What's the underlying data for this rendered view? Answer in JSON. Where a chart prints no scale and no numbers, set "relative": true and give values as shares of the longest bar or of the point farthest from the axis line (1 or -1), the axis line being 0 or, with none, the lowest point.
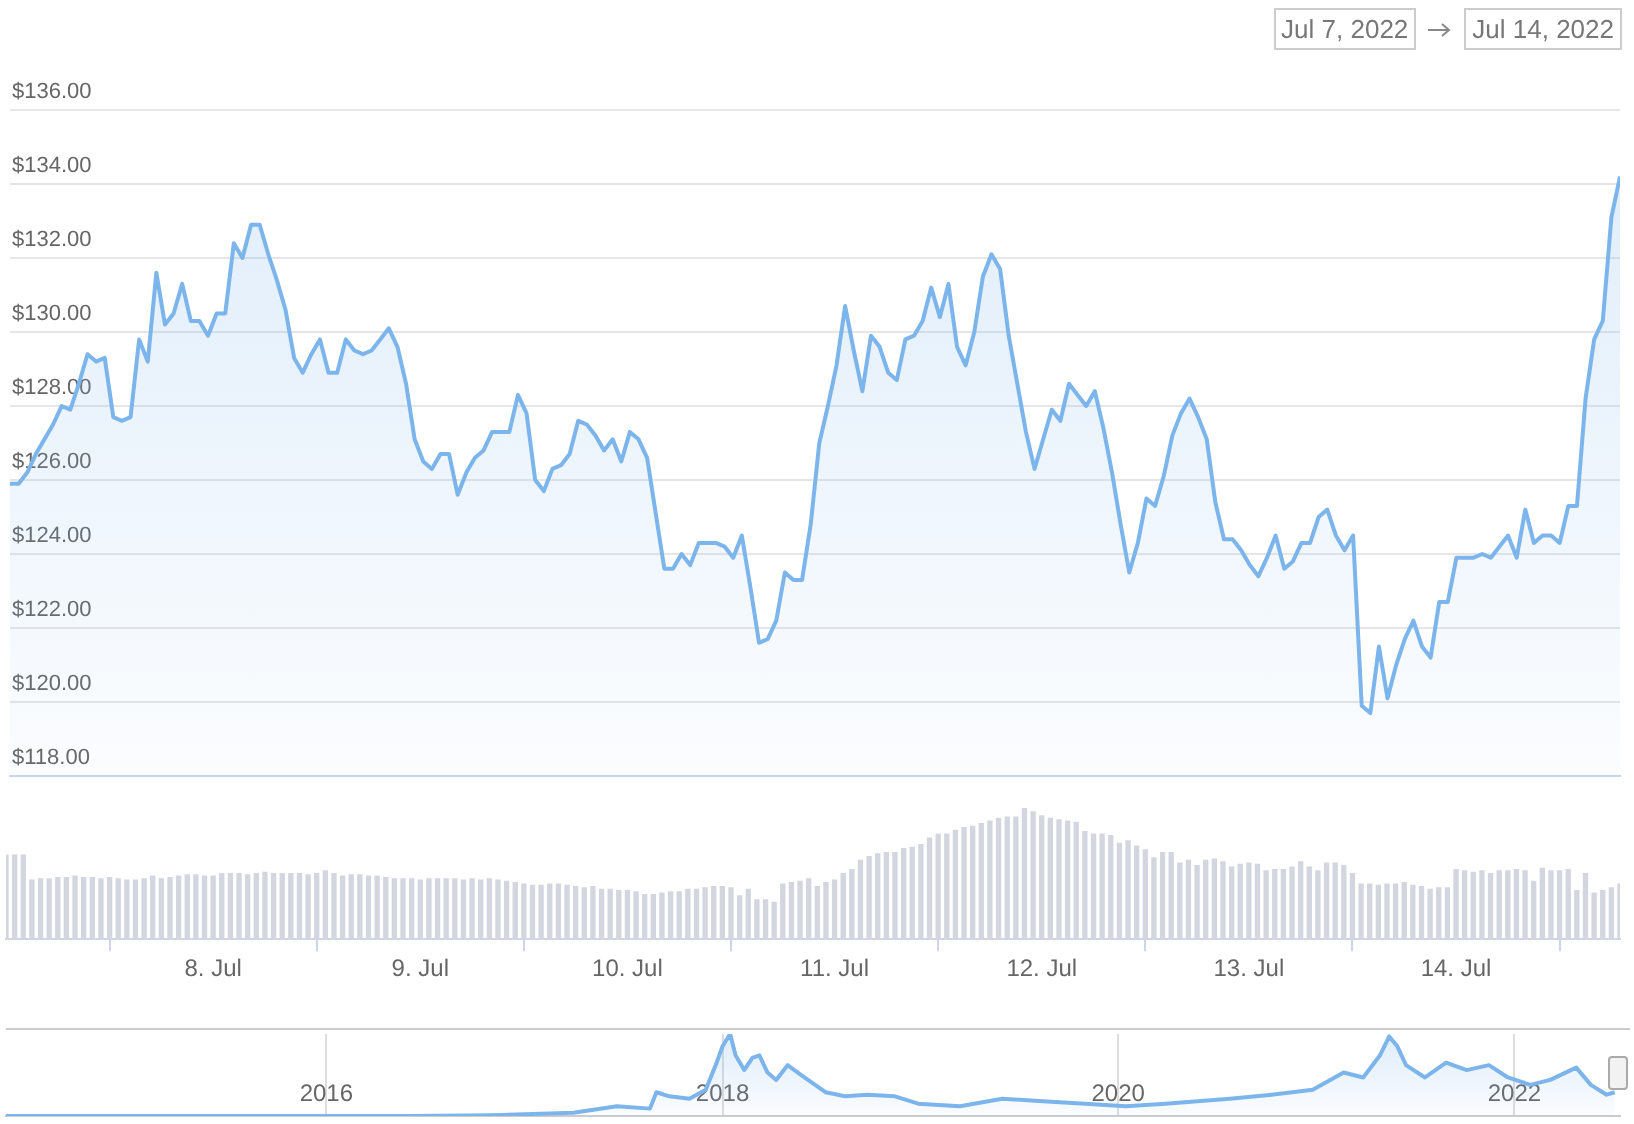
{
  "chart_data": [
    {
      "type": "area",
      "annotations": [
        "Jul 7, 2022",
        "Jul 14, 2022"
      ],
      "x": [
        "2022-07-07T00:00",
        "2022-07-07T01:00",
        "2022-07-07T02:00",
        "2022-07-07T03:00",
        "2022-07-07T04:00",
        "2022-07-07T05:00",
        "2022-07-07T06:00",
        "2022-07-07T07:00",
        "2022-07-07T08:00",
        "2022-07-07T09:00",
        "2022-07-07T10:00",
        "2022-07-07T11:00",
        "2022-07-07T12:00",
        "2022-07-07T13:00",
        "2022-07-07T14:00",
        "2022-07-07T15:00",
        "2022-07-07T16:00",
        "2022-07-07T17:00",
        "2022-07-07T18:00",
        "2022-07-07T19:00",
        "2022-07-07T20:00",
        "2022-07-07T21:00",
        "2022-07-07T22:00",
        "2022-07-07T23:00",
        "2022-07-08T00:00",
        "2022-07-08T01:00",
        "2022-07-08T02:00",
        "2022-07-08T03:00",
        "2022-07-08T04:00",
        "2022-07-08T05:00",
        "2022-07-08T06:00",
        "2022-07-08T07:00",
        "2022-07-08T08:00",
        "2022-07-08T09:00",
        "2022-07-08T10:00",
        "2022-07-08T11:00",
        "2022-07-08T12:00",
        "2022-07-08T13:00",
        "2022-07-08T14:00",
        "2022-07-08T15:00",
        "2022-07-08T16:00",
        "2022-07-08T17:00",
        "2022-07-08T18:00",
        "2022-07-08T19:00",
        "2022-07-08T20:00",
        "2022-07-08T21:00",
        "2022-07-08T22:00",
        "2022-07-08T23:00",
        "2022-07-09T00:00",
        "2022-07-09T01:00",
        "2022-07-09T02:00",
        "2022-07-09T03:00",
        "2022-07-09T04:00",
        "2022-07-09T05:00",
        "2022-07-09T06:00",
        "2022-07-09T07:00",
        "2022-07-09T08:00",
        "2022-07-09T09:00",
        "2022-07-09T10:00",
        "2022-07-09T11:00",
        "2022-07-09T12:00",
        "2022-07-09T13:00",
        "2022-07-09T14:00",
        "2022-07-09T15:00",
        "2022-07-09T16:00",
        "2022-07-09T17:00",
        "2022-07-09T18:00",
        "2022-07-09T19:00",
        "2022-07-09T20:00",
        "2022-07-09T21:00",
        "2022-07-09T22:00",
        "2022-07-09T23:00",
        "2022-07-10T00:00",
        "2022-07-10T01:00",
        "2022-07-10T02:00",
        "2022-07-10T03:00",
        "2022-07-10T04:00",
        "2022-07-10T05:00",
        "2022-07-10T06:00",
        "2022-07-10T07:00",
        "2022-07-10T08:00",
        "2022-07-10T09:00",
        "2022-07-10T10:00",
        "2022-07-10T11:00",
        "2022-07-10T12:00",
        "2022-07-10T13:00",
        "2022-07-10T14:00",
        "2022-07-10T15:00",
        "2022-07-10T16:00",
        "2022-07-10T17:00",
        "2022-07-10T18:00",
        "2022-07-10T19:00",
        "2022-07-10T20:00",
        "2022-07-10T21:00",
        "2022-07-10T22:00",
        "2022-07-10T23:00",
        "2022-07-11T00:00",
        "2022-07-11T01:00",
        "2022-07-11T02:00",
        "2022-07-11T03:00",
        "2022-07-11T04:00",
        "2022-07-11T05:00",
        "2022-07-11T06:00",
        "2022-07-11T07:00",
        "2022-07-11T08:00",
        "2022-07-11T09:00",
        "2022-07-11T10:00",
        "2022-07-11T11:00",
        "2022-07-11T12:00",
        "2022-07-11T13:00",
        "2022-07-11T14:00",
        "2022-07-11T15:00",
        "2022-07-11T16:00",
        "2022-07-11T17:00",
        "2022-07-11T18:00",
        "2022-07-11T19:00",
        "2022-07-11T20:00",
        "2022-07-11T21:00",
        "2022-07-11T22:00",
        "2022-07-11T23:00",
        "2022-07-12T00:00",
        "2022-07-12T01:00",
        "2022-07-12T02:00",
        "2022-07-12T03:00",
        "2022-07-12T04:00",
        "2022-07-12T05:00",
        "2022-07-12T06:00",
        "2022-07-12T07:00",
        "2022-07-12T08:00",
        "2022-07-12T09:00",
        "2022-07-12T10:00",
        "2022-07-12T11:00",
        "2022-07-12T12:00",
        "2022-07-12T13:00",
        "2022-07-12T14:00",
        "2022-07-12T15:00",
        "2022-07-12T16:00",
        "2022-07-12T17:00",
        "2022-07-12T18:00",
        "2022-07-12T19:00",
        "2022-07-12T20:00",
        "2022-07-12T21:00",
        "2022-07-12T22:00",
        "2022-07-12T23:00",
        "2022-07-13T00:00",
        "2022-07-13T01:00",
        "2022-07-13T02:00",
        "2022-07-13T03:00",
        "2022-07-13T04:00",
        "2022-07-13T05:00",
        "2022-07-13T06:00",
        "2022-07-13T07:00",
        "2022-07-13T08:00",
        "2022-07-13T09:00",
        "2022-07-13T10:00",
        "2022-07-13T11:00",
        "2022-07-13T12:00",
        "2022-07-13T13:00",
        "2022-07-13T14:00",
        "2022-07-13T15:00",
        "2022-07-13T16:00",
        "2022-07-13T17:00",
        "2022-07-13T18:00",
        "2022-07-13T19:00",
        "2022-07-13T20:00",
        "2022-07-13T21:00",
        "2022-07-13T22:00",
        "2022-07-13T23:00",
        "2022-07-14T00:00",
        "2022-07-14T01:00",
        "2022-07-14T02:00",
        "2022-07-14T03:00",
        "2022-07-14T04:00",
        "2022-07-14T05:00",
        "2022-07-14T06:00",
        "2022-07-14T07:00",
        "2022-07-14T08:00",
        "2022-07-14T09:00",
        "2022-07-14T10:00",
        "2022-07-14T11:00",
        "2022-07-14T12:00",
        "2022-07-14T13:00",
        "2022-07-14T14:00",
        "2022-07-14T15:00",
        "2022-07-14T16:00",
        "2022-07-14T17:00",
        "2022-07-14T18:00",
        "2022-07-14T19:00"
      ],
      "series": [
        {
          "color": "#7cb5ec",
          "values": [
            125.9,
            125.9,
            126.2,
            126.7,
            127.1,
            127.5,
            128.0,
            127.9,
            128.6,
            129.4,
            129.2,
            129.3,
            127.7,
            127.6,
            127.7,
            129.8,
            129.2,
            131.6,
            130.2,
            130.5,
            131.3,
            130.3,
            130.3,
            129.9,
            130.5,
            130.5,
            132.4,
            132.0,
            132.9,
            132.9,
            132.1,
            131.4,
            130.6,
            129.3,
            128.9,
            129.4,
            129.8,
            128.9,
            128.9,
            129.8,
            129.5,
            129.4,
            129.5,
            129.8,
            130.1,
            129.6,
            128.6,
            127.1,
            126.5,
            126.3,
            126.7,
            126.7,
            125.6,
            126.2,
            126.6,
            126.8,
            127.3,
            127.3,
            127.3,
            128.3,
            127.8,
            126.0,
            125.7,
            126.3,
            126.4,
            126.7,
            127.6,
            127.5,
            127.2,
            126.8,
            127.1,
            126.5,
            127.3,
            127.1,
            126.6,
            125.1,
            123.6,
            123.6,
            124.0,
            123.7,
            124.3,
            124.3,
            124.3,
            124.2,
            123.9,
            124.5,
            123.1,
            121.6,
            121.7,
            122.2,
            123.5,
            123.3,
            123.3,
            124.8,
            127.0,
            128.0,
            129.1,
            130.7,
            129.5,
            128.4,
            129.9,
            129.6,
            128.9,
            128.7,
            129.8,
            129.9,
            130.3,
            131.2,
            130.4,
            131.3,
            129.6,
            129.1,
            130.0,
            131.5,
            132.1,
            131.7,
            129.9,
            128.6,
            127.3,
            126.3,
            127.1,
            127.9,
            127.6,
            128.6,
            128.3,
            128.0,
            128.4,
            127.4,
            126.2,
            124.8,
            123.5,
            124.3,
            125.5,
            125.3,
            126.1,
            127.2,
            127.8,
            128.2,
            127.7,
            127.1,
            125.4,
            124.4,
            124.4,
            124.1,
            123.7,
            123.4,
            123.9,
            124.5,
            123.6,
            123.8,
            124.3,
            124.3,
            125.0,
            125.2,
            124.5,
            124.1,
            124.5,
            119.9,
            119.7,
            121.5,
            120.1,
            121.0,
            121.7,
            122.2,
            121.5,
            121.2,
            122.7,
            122.7,
            123.9,
            123.9,
            123.9,
            124.0,
            123.9,
            124.2,
            124.5,
            123.9,
            125.2,
            124.3,
            124.5,
            124.5,
            124.3,
            125.3,
            125.3,
            128.2,
            129.8,
            130.3,
            133.1,
            134.2
          ]
        }
      ],
      "xlim": [
        "2022-07-07T00:00",
        "2022-07-14T19:00"
      ],
      "ylim": [
        118,
        136
      ],
      "yticks": [
        {
          "value": 118,
          "label": "$118.00"
        },
        {
          "value": 120,
          "label": "$120.00"
        },
        {
          "value": 122,
          "label": "$122.00"
        },
        {
          "value": 124,
          "label": "$124.00"
        },
        {
          "value": 126,
          "label": "$126.00"
        },
        {
          "value": 128,
          "label": "$128.00"
        },
        {
          "value": 130,
          "label": "$130.00"
        },
        {
          "value": 132,
          "label": "$132.00"
        },
        {
          "value": 134,
          "label": "$134.00"
        },
        {
          "value": 136,
          "label": "$136.00"
        }
      ],
      "grid": "y",
      "tick_labels": "y",
      "marker": "none"
    },
    {
      "type": "bar",
      "relative": true,
      "color": "#d3d6df",
      "x": [
        "2022-07-07T00:00",
        "2022-07-07T01:00",
        "2022-07-07T02:00",
        "2022-07-07T03:00",
        "2022-07-07T04:00",
        "2022-07-07T05:00",
        "2022-07-07T06:00",
        "2022-07-07T07:00",
        "2022-07-07T08:00",
        "2022-07-07T09:00",
        "2022-07-07T10:00",
        "2022-07-07T11:00",
        "2022-07-07T12:00",
        "2022-07-07T13:00",
        "2022-07-07T14:00",
        "2022-07-07T15:00",
        "2022-07-07T16:00",
        "2022-07-07T17:00",
        "2022-07-07T18:00",
        "2022-07-07T19:00",
        "2022-07-07T20:00",
        "2022-07-07T21:00",
        "2022-07-07T22:00",
        "2022-07-07T23:00",
        "2022-07-08T00:00",
        "2022-07-08T01:00",
        "2022-07-08T02:00",
        "2022-07-08T03:00",
        "2022-07-08T04:00",
        "2022-07-08T05:00",
        "2022-07-08T06:00",
        "2022-07-08T07:00",
        "2022-07-08T08:00",
        "2022-07-08T09:00",
        "2022-07-08T10:00",
        "2022-07-08T11:00",
        "2022-07-08T12:00",
        "2022-07-08T13:00",
        "2022-07-08T14:00",
        "2022-07-08T15:00",
        "2022-07-08T16:00",
        "2022-07-08T17:00",
        "2022-07-08T18:00",
        "2022-07-08T19:00",
        "2022-07-08T20:00",
        "2022-07-08T21:00",
        "2022-07-08T22:00",
        "2022-07-08T23:00",
        "2022-07-09T00:00",
        "2022-07-09T01:00",
        "2022-07-09T02:00",
        "2022-07-09T03:00",
        "2022-07-09T04:00",
        "2022-07-09T05:00",
        "2022-07-09T06:00",
        "2022-07-09T07:00",
        "2022-07-09T08:00",
        "2022-07-09T09:00",
        "2022-07-09T10:00",
        "2022-07-09T11:00",
        "2022-07-09T12:00",
        "2022-07-09T13:00",
        "2022-07-09T14:00",
        "2022-07-09T15:00",
        "2022-07-09T16:00",
        "2022-07-09T17:00",
        "2022-07-09T18:00",
        "2022-07-09T19:00",
        "2022-07-09T20:00",
        "2022-07-09T21:00",
        "2022-07-09T22:00",
        "2022-07-09T23:00",
        "2022-07-10T00:00",
        "2022-07-10T01:00",
        "2022-07-10T02:00",
        "2022-07-10T03:00",
        "2022-07-10T04:00",
        "2022-07-10T05:00",
        "2022-07-10T06:00",
        "2022-07-10T07:00",
        "2022-07-10T08:00",
        "2022-07-10T09:00",
        "2022-07-10T10:00",
        "2022-07-10T11:00",
        "2022-07-10T12:00",
        "2022-07-10T13:00",
        "2022-07-10T14:00",
        "2022-07-10T15:00",
        "2022-07-10T16:00",
        "2022-07-10T17:00",
        "2022-07-10T18:00",
        "2022-07-10T19:00",
        "2022-07-10T20:00",
        "2022-07-10T21:00",
        "2022-07-10T22:00",
        "2022-07-10T23:00",
        "2022-07-11T00:00",
        "2022-07-11T01:00",
        "2022-07-11T02:00",
        "2022-07-11T03:00",
        "2022-07-11T04:00",
        "2022-07-11T05:00",
        "2022-07-11T06:00",
        "2022-07-11T07:00",
        "2022-07-11T08:00",
        "2022-07-11T09:00",
        "2022-07-11T10:00",
        "2022-07-11T11:00",
        "2022-07-11T12:00",
        "2022-07-11T13:00",
        "2022-07-11T14:00",
        "2022-07-11T15:00",
        "2022-07-11T16:00",
        "2022-07-11T17:00",
        "2022-07-11T18:00",
        "2022-07-11T19:00",
        "2022-07-11T20:00",
        "2022-07-11T21:00",
        "2022-07-11T22:00",
        "2022-07-11T23:00",
        "2022-07-12T00:00",
        "2022-07-12T01:00",
        "2022-07-12T02:00",
        "2022-07-12T03:00",
        "2022-07-12T04:00",
        "2022-07-12T05:00",
        "2022-07-12T06:00",
        "2022-07-12T07:00",
        "2022-07-12T08:00",
        "2022-07-12T09:00",
        "2022-07-12T10:00",
        "2022-07-12T11:00",
        "2022-07-12T12:00",
        "2022-07-12T13:00",
        "2022-07-12T14:00",
        "2022-07-12T15:00",
        "2022-07-12T16:00",
        "2022-07-12T17:00",
        "2022-07-12T18:00",
        "2022-07-12T19:00",
        "2022-07-12T20:00",
        "2022-07-12T21:00",
        "2022-07-12T22:00",
        "2022-07-12T23:00",
        "2022-07-13T00:00",
        "2022-07-13T01:00",
        "2022-07-13T02:00",
        "2022-07-13T03:00",
        "2022-07-13T04:00",
        "2022-07-13T05:00",
        "2022-07-13T06:00",
        "2022-07-13T07:00",
        "2022-07-13T08:00",
        "2022-07-13T09:00",
        "2022-07-13T10:00",
        "2022-07-13T11:00",
        "2022-07-13T12:00",
        "2022-07-13T13:00",
        "2022-07-13T14:00",
        "2022-07-13T15:00",
        "2022-07-13T16:00",
        "2022-07-13T17:00",
        "2022-07-13T18:00",
        "2022-07-13T19:00",
        "2022-07-13T20:00",
        "2022-07-13T21:00",
        "2022-07-13T22:00",
        "2022-07-13T23:00",
        "2022-07-14T00:00",
        "2022-07-14T01:00",
        "2022-07-14T02:00",
        "2022-07-14T03:00",
        "2022-07-14T04:00",
        "2022-07-14T05:00",
        "2022-07-14T06:00",
        "2022-07-14T07:00",
        "2022-07-14T08:00",
        "2022-07-14T09:00",
        "2022-07-14T10:00",
        "2022-07-14T11:00",
        "2022-07-14T12:00",
        "2022-07-14T13:00",
        "2022-07-14T14:00",
        "2022-07-14T15:00",
        "2022-07-14T16:00",
        "2022-07-14T17:00",
        "2022-07-14T18:00",
        "2022-07-14T19:00"
      ],
      "values": [
        0.64,
        0.64,
        0.64,
        0.45,
        0.46,
        0.46,
        0.47,
        0.47,
        0.48,
        0.47,
        0.47,
        0.46,
        0.47,
        0.46,
        0.45,
        0.45,
        0.46,
        0.48,
        0.46,
        0.47,
        0.48,
        0.49,
        0.49,
        0.48,
        0.48,
        0.5,
        0.5,
        0.5,
        0.49,
        0.5,
        0.51,
        0.5,
        0.5,
        0.5,
        0.5,
        0.49,
        0.5,
        0.52,
        0.5,
        0.48,
        0.49,
        0.49,
        0.48,
        0.48,
        0.47,
        0.46,
        0.46,
        0.46,
        0.45,
        0.46,
        0.46,
        0.46,
        0.46,
        0.45,
        0.46,
        0.45,
        0.46,
        0.45,
        0.44,
        0.43,
        0.42,
        0.41,
        0.41,
        0.42,
        0.42,
        0.41,
        0.4,
        0.39,
        0.4,
        0.38,
        0.38,
        0.37,
        0.37,
        0.36,
        0.34,
        0.34,
        0.35,
        0.36,
        0.36,
        0.38,
        0.38,
        0.39,
        0.4,
        0.4,
        0.39,
        0.33,
        0.38,
        0.3,
        0.3,
        0.28,
        0.42,
        0.43,
        0.44,
        0.46,
        0.4,
        0.43,
        0.45,
        0.5,
        0.53,
        0.6,
        0.63,
        0.65,
        0.66,
        0.66,
        0.69,
        0.7,
        0.72,
        0.77,
        0.8,
        0.8,
        0.83,
        0.85,
        0.86,
        0.88,
        0.9,
        0.92,
        0.93,
        0.93,
        1.0,
        0.97,
        0.94,
        0.92,
        0.91,
        0.9,
        0.89,
        0.82,
        0.8,
        0.8,
        0.79,
        0.73,
        0.75,
        0.71,
        0.68,
        0.62,
        0.66,
        0.66,
        0.58,
        0.6,
        0.56,
        0.6,
        0.61,
        0.59,
        0.55,
        0.57,
        0.58,
        0.57,
        0.52,
        0.53,
        0.53,
        0.55,
        0.59,
        0.55,
        0.52,
        0.58,
        0.58,
        0.56,
        0.5,
        0.42,
        0.42,
        0.41,
        0.42,
        0.42,
        0.43,
        0.41,
        0.4,
        0.38,
        0.39,
        0.39,
        0.53,
        0.52,
        0.51,
        0.52,
        0.5,
        0.52,
        0.52,
        0.53,
        0.52,
        0.44,
        0.54,
        0.52,
        0.52,
        0.53,
        0.37,
        0.5,
        0.35,
        0.37,
        0.39,
        0.42
      ],
      "xlim": [
        "2022-07-07T00:00",
        "2022-07-14T19:00"
      ],
      "xticks": [
        {
          "value": "2022-07-08",
          "label": "8. Jul"
        },
        {
          "value": "2022-07-09",
          "label": "9. Jul"
        },
        {
          "value": "2022-07-10",
          "label": "10. Jul"
        },
        {
          "value": "2022-07-11",
          "label": "11. Jul"
        },
        {
          "value": "2022-07-12",
          "label": "12. Jul"
        },
        {
          "value": "2022-07-13",
          "label": "13. Jul"
        },
        {
          "value": "2022-07-14",
          "label": "14. Jul"
        }
      ],
      "tick_labels": "x"
    },
    {
      "type": "area",
      "relative": true,
      "color": "#7cb5ec",
      "x": [
        "2014-05-20",
        "2016-06",
        "2016-11",
        "2017-04",
        "2017-06-20",
        "2017-08-20",
        "2017-09",
        "2017-09-25",
        "2017-11",
        "2017-12",
        "2017-12-20",
        "2018-01",
        "2018-01-15",
        "2018-01-25",
        "2018-02-10",
        "2018-02-25",
        "2018-03-10",
        "2018-03-25",
        "2018-04-10",
        "2018-05",
        "2018-06",
        "2018-07-10",
        "2018-08-15",
        "2018-09-25",
        "2018-11-15",
        "2018-12-28",
        "2019-03-15",
        "2019-06",
        "2019-08-15",
        "2019-11",
        "2020-01-15",
        "2020-03-28",
        "2020-07-25",
        "2020-10-10",
        "2020-12-25",
        "2021-02-20",
        "2021-03-28",
        "2021-04-28",
        "2021-05-15",
        "2021-05-30",
        "2021-06-15",
        "2021-07-20",
        "2021-08-28",
        "2021-10-05",
        "2021-11-15",
        "2021-12-20",
        "2022-01-30",
        "2022-03-08",
        "2022-04-25",
        "2022-05-22",
        "2022-06-20",
        "2022-07-05"
      ],
      "values": [
        0,
        0,
        0.01,
        0.04,
        0.12,
        0.09,
        0.29,
        0.24,
        0.21,
        0.32,
        0.63,
        0.85,
        1.0,
        0.74,
        0.56,
        0.71,
        0.74,
        0.53,
        0.44,
        0.62,
        0.47,
        0.29,
        0.24,
        0.26,
        0.24,
        0.15,
        0.12,
        0.21,
        0.18,
        0.15,
        0.12,
        0.15,
        0.21,
        0.26,
        0.32,
        0.53,
        0.47,
        0.74,
        0.97,
        0.85,
        0.62,
        0.47,
        0.65,
        0.56,
        0.62,
        0.47,
        0.38,
        0.44,
        0.59,
        0.38,
        0.26,
        0.29
      ],
      "xlim": [
        "2014-05-20",
        "2022-07-14T19:00"
      ],
      "xticks": [
        {
          "value": "2016",
          "label": "2016"
        },
        {
          "value": "2018",
          "label": "2018"
        },
        {
          "value": "2020",
          "label": "2020"
        },
        {
          "value": "2022",
          "label": "2022"
        }
      ],
      "grid": "x",
      "tick_labels": "x"
    }
  ]
}
